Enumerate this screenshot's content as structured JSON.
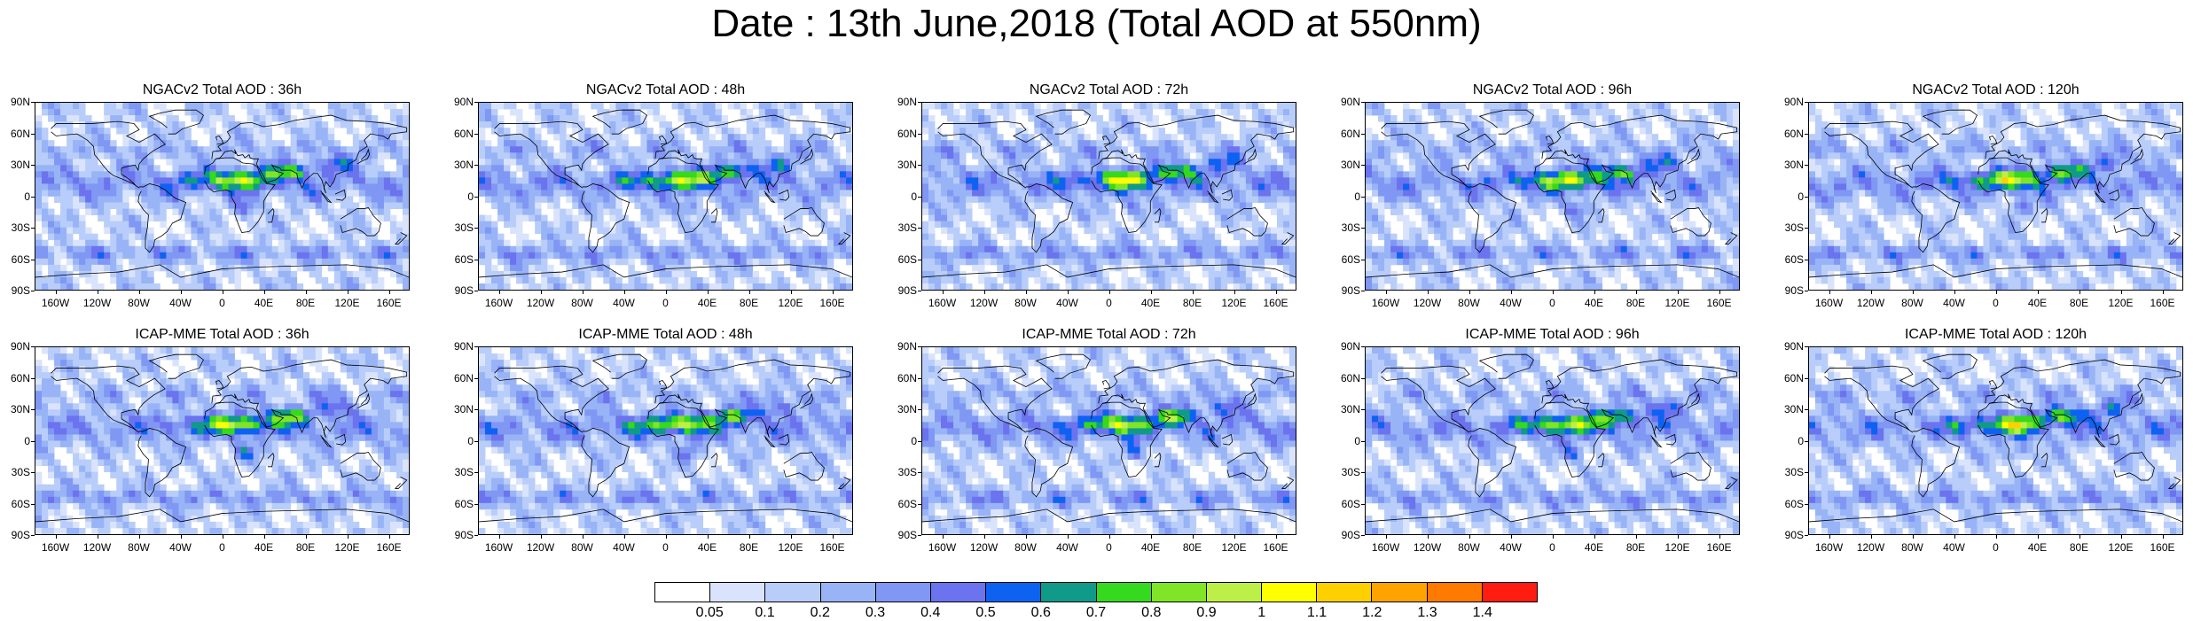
{
  "title": "Date : 13th June,2018 (Total AOD at 550nm)",
  "panels": [
    {
      "title": "NGACv2 Total AOD : 36h",
      "model": "NGACv2",
      "hour": 36
    },
    {
      "title": "NGACv2 Total AOD : 48h",
      "model": "NGACv2",
      "hour": 48
    },
    {
      "title": "NGACv2 Total AOD : 72h",
      "model": "NGACv2",
      "hour": 72
    },
    {
      "title": "NGACv2 Total AOD : 96h",
      "model": "NGACv2",
      "hour": 96
    },
    {
      "title": "NGACv2 Total AOD : 120h",
      "model": "NGACv2",
      "hour": 120
    },
    {
      "title": "ICAP-MME Total AOD : 36h",
      "model": "ICAP-MME",
      "hour": 36
    },
    {
      "title": "ICAP-MME Total AOD : 48h",
      "model": "ICAP-MME",
      "hour": 48
    },
    {
      "title": "ICAP-MME Total AOD : 72h",
      "model": "ICAP-MME",
      "hour": 72
    },
    {
      "title": "ICAP-MME Total AOD : 96h",
      "model": "ICAP-MME",
      "hour": 96
    },
    {
      "title": "ICAP-MME Total AOD : 120h",
      "model": "ICAP-MME",
      "hour": 120
    }
  ],
  "lat_ticks": [
    "90N",
    "60N",
    "30N",
    "0",
    "30S",
    "60S",
    "90S"
  ],
  "lon_ticks": [
    "160W",
    "120W",
    "80W",
    "40W",
    "0",
    "40E",
    "80E",
    "120E",
    "160E"
  ],
  "colorbar": {
    "labels": [
      "0.05",
      "0.1",
      "0.2",
      "0.3",
      "0.4",
      "0.5",
      "0.6",
      "0.7",
      "0.8",
      "0.9",
      "1",
      "1.1",
      "1.2",
      "1.3",
      "1.4"
    ],
    "colors": [
      "#ffffff",
      "#d9e4fc",
      "#b9cdfa",
      "#98b4f6",
      "#8097f3",
      "#6b73ee",
      "#0d62f2",
      "#0f9a8a",
      "#35d91d",
      "#7fe526",
      "#bdf046",
      "#ffff00",
      "#ffd000",
      "#ffa300",
      "#ff7a00",
      "#ff1c10"
    ]
  }
}
